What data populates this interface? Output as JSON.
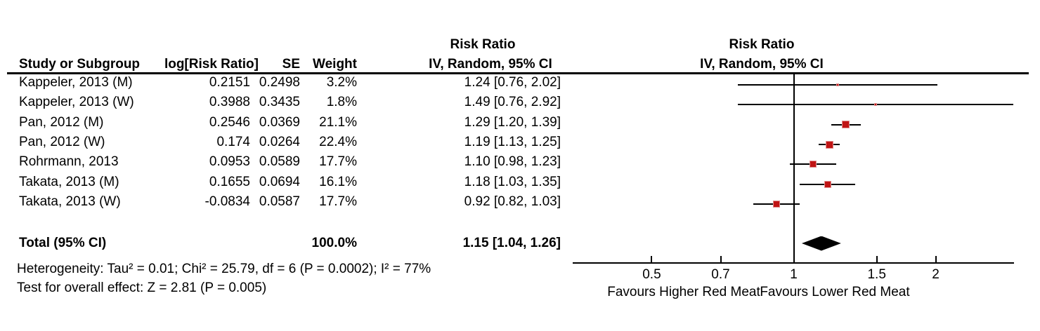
{
  "table": {
    "headers": {
      "risk_ratio_group": "Risk Ratio",
      "study": "Study or Subgroup",
      "log_rr": "log[Risk Ratio]",
      "se": "SE",
      "weight": "Weight",
      "ci_method": "IV, Random, 95% CI"
    },
    "rows": [
      {
        "study": "Kappeler, 2013 (M)",
        "log_rr": "0.2151",
        "se": "0.2498",
        "weight": "3.2%",
        "rr_ci": "1.24 [0.76, 2.02]"
      },
      {
        "study": "Kappeler, 2013 (W)",
        "log_rr": "0.3988",
        "se": "0.3435",
        "weight": "1.8%",
        "rr_ci": "1.49 [0.76, 2.92]"
      },
      {
        "study": "Pan, 2012 (M)",
        "log_rr": "0.2546",
        "se": "0.0369",
        "weight": "21.1%",
        "rr_ci": "1.29 [1.20, 1.39]"
      },
      {
        "study": "Pan, 2012 (W)",
        "log_rr": "0.174",
        "se": "0.0264",
        "weight": "22.4%",
        "rr_ci": "1.19 [1.13, 1.25]"
      },
      {
        "study": "Rohrmann, 2013",
        "log_rr": "0.0953",
        "se": "0.0589",
        "weight": "17.7%",
        "rr_ci": "1.10 [0.98, 1.23]"
      },
      {
        "study": "Takata, 2013 (M)",
        "log_rr": "0.1655",
        "se": "0.0694",
        "weight": "16.1%",
        "rr_ci": "1.18 [1.03, 1.35]"
      },
      {
        "study": "Takata, 2013 (W)",
        "log_rr": "-0.0834",
        "se": "0.0587",
        "weight": "17.7%",
        "rr_ci": "0.92 [0.82, 1.03]"
      }
    ],
    "total": {
      "label": "Total (95% CI)",
      "weight": "100.0%",
      "rr_ci": "1.15 [1.04, 1.26]"
    }
  },
  "plot": {
    "header_line1": "Risk Ratio",
    "header_line2": "IV, Random, 95% CI",
    "favours_left": "Favours Higher Red Meat",
    "favours_right": "Favours Lower Red Meat"
  },
  "footnotes": {
    "heterogeneity": "Heterogeneity: Tau² = 0.01; Chi² = 25.79, df = 6 (P = 0.0002); I² = 77%",
    "overall_effect": "Test for overall effect: Z = 2.81 (P = 0.005)"
  },
  "colors": {
    "square_fill": "#c01414",
    "square_border": "#e08f8f",
    "diamond": "#000000",
    "line": "#000000"
  },
  "chart_data": {
    "type": "forest",
    "x_scale": "log",
    "effect_measure": "Risk Ratio",
    "model": "IV, Random, 95% CI",
    "ref_line": 1,
    "x_ticks": [
      0.5,
      0.7,
      1,
      1.5,
      2
    ],
    "x_range": [
      0.34,
      2.93
    ],
    "studies": [
      {
        "name": "Kappeler, 2013 (M)",
        "rr": 1.24,
        "ci_low": 0.76,
        "ci_high": 2.02,
        "weight_pct": 3.2
      },
      {
        "name": "Kappeler, 2013 (W)",
        "rr": 1.49,
        "ci_low": 0.76,
        "ci_high": 2.92,
        "weight_pct": 1.8
      },
      {
        "name": "Pan, 2012 (M)",
        "rr": 1.29,
        "ci_low": 1.2,
        "ci_high": 1.39,
        "weight_pct": 21.1
      },
      {
        "name": "Pan, 2012 (W)",
        "rr": 1.19,
        "ci_low": 1.13,
        "ci_high": 1.25,
        "weight_pct": 22.4
      },
      {
        "name": "Rohrmann, 2013",
        "rr": 1.1,
        "ci_low": 0.98,
        "ci_high": 1.23,
        "weight_pct": 17.7
      },
      {
        "name": "Takata, 2013 (M)",
        "rr": 1.18,
        "ci_low": 1.03,
        "ci_high": 1.35,
        "weight_pct": 16.1
      },
      {
        "name": "Takata, 2013 (W)",
        "rr": 0.92,
        "ci_low": 0.82,
        "ci_high": 1.03,
        "weight_pct": 17.7
      }
    ],
    "total": {
      "rr": 1.15,
      "ci_low": 1.04,
      "ci_high": 1.26,
      "weight_pct": 100.0
    }
  }
}
